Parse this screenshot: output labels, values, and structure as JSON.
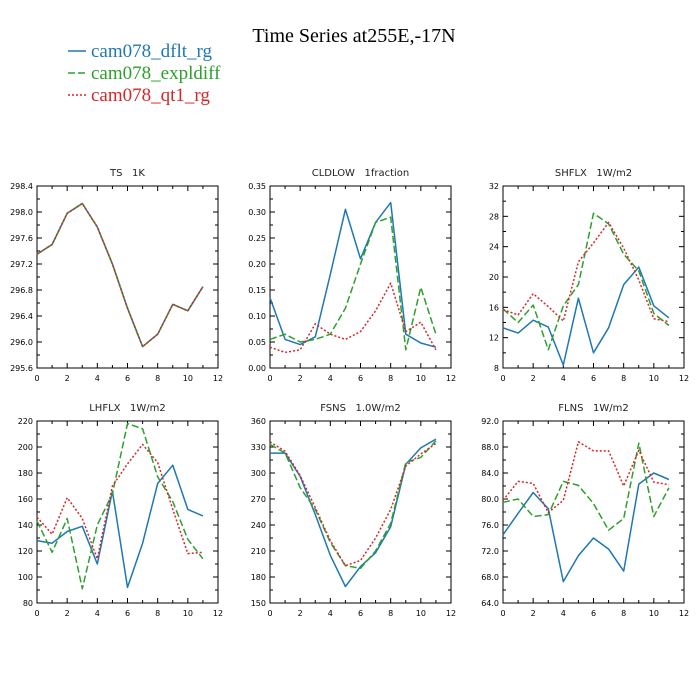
{
  "figure": {
    "title": "Time Series at255E,-17N"
  },
  "legend": [
    {
      "name": "cam078_dflt_rg",
      "color": "#1f77b4",
      "dash": "solid"
    },
    {
      "name": "cam078_expldiff",
      "color": "#2ca02c",
      "dash": "longdash"
    },
    {
      "name": "cam078_qt1_rg",
      "color": "#d62728",
      "dash": "dotted"
    }
  ],
  "chart_data": [
    {
      "type": "line",
      "title": "TS   1K",
      "xlim": [
        0,
        12
      ],
      "xticks": [
        0,
        2,
        4,
        6,
        8,
        10,
        12
      ],
      "ylim": [
        295.6,
        298.4
      ],
      "yticks": [
        295.6,
        296.0,
        296.4,
        296.8,
        297.2,
        297.6,
        298.0,
        298.4
      ],
      "ytick_labels": [
        "295.6",
        "296.0",
        "296.4",
        "296.8",
        "297.2",
        "297.6",
        "298.0",
        "298.4"
      ],
      "x": [
        0,
        1,
        2,
        3,
        4,
        5,
        6,
        7,
        8,
        9,
        10,
        11
      ],
      "series": [
        {
          "name": "cam078_dflt_rg",
          "values": [
            297.35,
            297.5,
            297.98,
            298.13,
            297.77,
            297.2,
            296.52,
            295.93,
            296.12,
            296.58,
            296.48,
            296.85
          ]
        },
        {
          "name": "cam078_expldiff",
          "values": [
            297.35,
            297.5,
            297.98,
            298.13,
            297.77,
            297.2,
            296.52,
            295.93,
            296.12,
            296.58,
            296.48,
            296.85
          ]
        },
        {
          "name": "cam078_qt1_rg",
          "values": [
            297.35,
            297.5,
            297.98,
            298.13,
            297.77,
            297.2,
            296.52,
            295.93,
            296.12,
            296.58,
            296.48,
            296.85
          ]
        }
      ]
    },
    {
      "type": "line",
      "title": "CLDLOW   1fraction",
      "xlim": [
        0,
        12
      ],
      "xticks": [
        0,
        2,
        4,
        6,
        8,
        10,
        12
      ],
      "ylim": [
        0.0,
        0.35
      ],
      "yticks": [
        0.0,
        0.05,
        0.1,
        0.15,
        0.2,
        0.25,
        0.3,
        0.35
      ],
      "ytick_labels": [
        "0.00",
        "0.05",
        "0.10",
        "0.15",
        "0.20",
        "0.25",
        "0.30",
        "0.35"
      ],
      "x": [
        0,
        1,
        2,
        3,
        4,
        5,
        6,
        7,
        8,
        9,
        10,
        11
      ],
      "series": [
        {
          "name": "cam078_dflt_rg",
          "values": [
            0.135,
            0.055,
            0.045,
            0.06,
            0.18,
            0.305,
            0.21,
            0.28,
            0.318,
            0.065,
            0.048,
            0.04
          ]
        },
        {
          "name": "cam078_expldiff",
          "values": [
            0.055,
            0.065,
            0.05,
            0.055,
            0.065,
            0.115,
            0.2,
            0.28,
            0.29,
            0.035,
            0.155,
            0.065
          ]
        },
        {
          "name": "cam078_qt1_rg",
          "values": [
            0.04,
            0.03,
            0.035,
            0.085,
            0.065,
            0.055,
            0.07,
            0.11,
            0.163,
            0.07,
            0.088,
            0.035
          ]
        }
      ]
    },
    {
      "type": "line",
      "title": "SHFLX   1W/m2",
      "xlim": [
        0,
        12
      ],
      "xticks": [
        0,
        2,
        4,
        6,
        8,
        10,
        12
      ],
      "ylim": [
        8,
        32
      ],
      "yticks": [
        8,
        12,
        16,
        20,
        24,
        28,
        32
      ],
      "ytick_labels": [
        "8",
        "12",
        "16",
        "20",
        "24",
        "28",
        "32"
      ],
      "x": [
        0,
        1,
        2,
        3,
        4,
        5,
        6,
        7,
        8,
        9,
        10,
        11
      ],
      "series": [
        {
          "name": "cam078_dflt_rg",
          "values": [
            13.3,
            12.6,
            14.3,
            13.4,
            8.4,
            17.2,
            10.0,
            13.3,
            19.0,
            21.3,
            16.2,
            14.6
          ]
        },
        {
          "name": "cam078_expldiff",
          "values": [
            15.8,
            14.0,
            16.3,
            10.4,
            16.2,
            19.0,
            28.4,
            27.0,
            23.0,
            20.8,
            15.2,
            13.6
          ]
        },
        {
          "name": "cam078_qt1_rg",
          "values": [
            15.7,
            15.0,
            17.8,
            16.1,
            14.2,
            22.0,
            24.5,
            27.2,
            23.8,
            19.6,
            14.5,
            14.1
          ]
        }
      ]
    },
    {
      "type": "line",
      "title": "LHFLX   1W/m2",
      "xlim": [
        0,
        12
      ],
      "xticks": [
        0,
        2,
        4,
        6,
        8,
        10,
        12
      ],
      "ylim": [
        80,
        220
      ],
      "yticks": [
        80,
        100,
        120,
        140,
        160,
        180,
        200,
        220
      ],
      "ytick_labels": [
        "80",
        "100",
        "120",
        "140",
        "160",
        "180",
        "200",
        "220"
      ],
      "x": [
        0,
        1,
        2,
        3,
        4,
        5,
        6,
        7,
        8,
        9,
        10,
        11
      ],
      "series": [
        {
          "name": "cam078_dflt_rg",
          "values": [
            128,
            126,
            135,
            139,
            110,
            166,
            92,
            126,
            172,
            186,
            152,
            147
          ]
        },
        {
          "name": "cam078_expldiff",
          "values": [
            143,
            119,
            145,
            91,
            140,
            164,
            218,
            214,
            177,
            158,
            129,
            114
          ]
        },
        {
          "name": "cam078_qt1_rg",
          "values": [
            146,
            133,
            161,
            145,
            114,
            170,
            187,
            202,
            188,
            152,
            118,
            119
          ]
        }
      ]
    },
    {
      "type": "line",
      "title": "FSNS   1.0W/m2",
      "xlim": [
        0,
        12
      ],
      "xticks": [
        0,
        2,
        4,
        6,
        8,
        10,
        12
      ],
      "ylim": [
        150,
        360
      ],
      "yticks": [
        150,
        180,
        210,
        240,
        270,
        300,
        330,
        360
      ],
      "ytick_labels": [
        "150",
        "180",
        "210",
        "240",
        "270",
        "300",
        "330",
        "360"
      ],
      "x": [
        0,
        1,
        2,
        3,
        4,
        5,
        6,
        7,
        8,
        9,
        10,
        11
      ],
      "series": [
        {
          "name": "cam078_dflt_rg",
          "values": [
            323,
            323,
            296,
            252,
            205,
            169,
            192,
            208,
            238,
            310,
            329,
            339
          ]
        },
        {
          "name": "cam078_expldiff",
          "values": [
            333,
            323,
            283,
            258,
            220,
            193,
            190,
            210,
            242,
            312,
            318,
            337
          ]
        },
        {
          "name": "cam078_qt1_rg",
          "values": [
            336,
            325,
            297,
            260,
            222,
            193,
            199,
            225,
            258,
            308,
            322,
            334
          ]
        }
      ]
    },
    {
      "type": "line",
      "title": "FLNS   1W/m2",
      "xlim": [
        0,
        12
      ],
      "xticks": [
        0,
        2,
        4,
        6,
        8,
        10,
        12
      ],
      "ylim": [
        64.0,
        92.0
      ],
      "yticks": [
        64,
        68,
        72,
        76,
        80,
        84,
        88,
        92
      ],
      "ytick_labels": [
        "64.0",
        "68.0",
        "72.0",
        "76.0",
        "80.0",
        "84.0",
        "88.0",
        "92.0"
      ],
      "x": [
        0,
        1,
        2,
        3,
        4,
        5,
        6,
        7,
        8,
        9,
        10,
        11
      ],
      "series": [
        {
          "name": "cam078_dflt_rg",
          "values": [
            74.5,
            77.8,
            81.0,
            78.5,
            67.3,
            71.3,
            74.0,
            72.3,
            68.9,
            82.3,
            84.0,
            83.0
          ]
        },
        {
          "name": "cam078_expldiff",
          "values": [
            79.5,
            80.0,
            77.3,
            77.6,
            82.7,
            82.1,
            79.3,
            75.2,
            77.0,
            88.6,
            77.3,
            81.7
          ]
        },
        {
          "name": "cam078_qt1_rg",
          "values": [
            79.8,
            82.7,
            82.4,
            77.9,
            79.8,
            88.8,
            87.4,
            87.4,
            82.0,
            87.5,
            82.6,
            82.2
          ]
        }
      ]
    }
  ]
}
